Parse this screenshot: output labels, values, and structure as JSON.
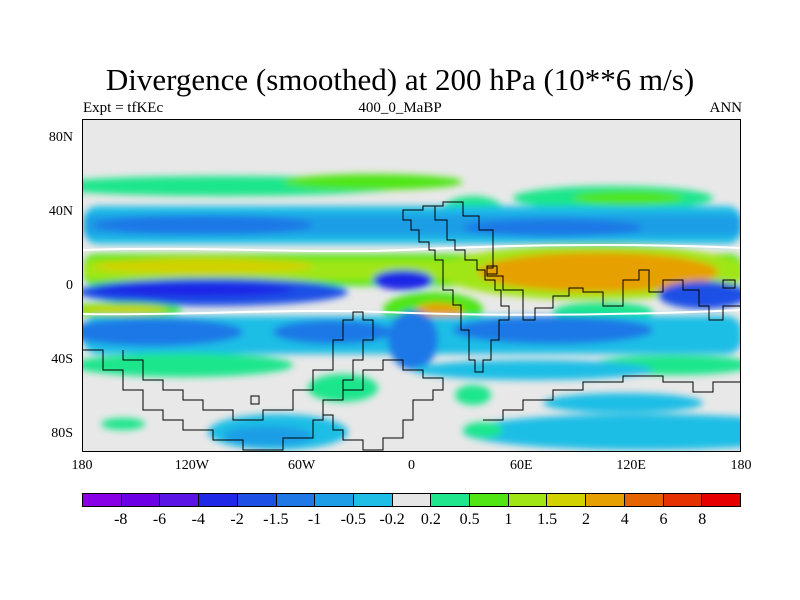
{
  "title": "Divergence (smoothed) at 200 hPa (10**6 m/s)",
  "subtitle_left": "Expt = tfKEc",
  "subtitle_center": "400_0_MaBP",
  "subtitle_right": "ANN",
  "map": {
    "projection": "cylindrical equidistant",
    "lon_range": [
      -180,
      180
    ],
    "lat_range": [
      -90,
      90
    ],
    "background_color": "#e8e8e8",
    "y_tick_labels": [
      "80N",
      "40N",
      "0",
      "40S",
      "80S"
    ],
    "x_tick_labels": [
      "180",
      "120W",
      "60W",
      "0",
      "60E",
      "120E",
      "180"
    ],
    "continent_outline": "black"
  },
  "colorbar": {
    "colors": [
      "#8a00e6",
      "#6e00e6",
      "#5a14e6",
      "#1e28e6",
      "#1e50e6",
      "#1e78e6",
      "#1e9ee6",
      "#1ebee6",
      "#e6e6e6",
      "#1ee68c",
      "#50e614",
      "#a0e614",
      "#d2d200",
      "#e6a000",
      "#e66400",
      "#e63200",
      "#e60000"
    ],
    "labels": [
      "-8",
      "-6",
      "-4",
      "-2",
      "-1.5",
      "-1",
      "-0.5",
      "-0.2",
      "0.2",
      "0.5",
      "1",
      "1.5",
      "2",
      "4",
      "6",
      "8"
    ]
  },
  "chart_data": {
    "type": "heatmap",
    "title": "Divergence (smoothed) at 200 hPa (10**6 m/s)",
    "variable": "Divergence (smoothed)",
    "level": "200 hPa",
    "units": "10**6 m/s",
    "experiment": "tfKEc",
    "period": "400_0_MaBP",
    "season": "ANN",
    "contour_levels": [
      -8,
      -6,
      -4,
      -2,
      -1.5,
      -1,
      -0.5,
      -0.2,
      0.2,
      0.5,
      1,
      1.5,
      2,
      4,
      6,
      8
    ],
    "xlim": [
      -180,
      180
    ],
    "ylim": [
      -90,
      90
    ],
    "x_ticks": [
      -180,
      -120,
      -60,
      0,
      60,
      120,
      180
    ],
    "y_ticks": [
      80,
      40,
      0,
      -40,
      -80
    ],
    "features": [
      {
        "lon": [
          -180,
          180
        ],
        "lat": [
          50,
          60
        ],
        "value": 0.5
      },
      {
        "lon": [
          -180,
          180
        ],
        "lat": [
          26,
          44
        ],
        "value": -1
      },
      {
        "lon": [
          -180,
          180
        ],
        "lat": [
          5,
          18
        ],
        "value": 1.5
      },
      {
        "lon": [
          30,
          145
        ],
        "lat": [
          -6,
          16
        ],
        "value": 2
      },
      {
        "lon": [
          -180,
          10
        ],
        "lat": [
          -8,
          4
        ],
        "value": -4
      },
      {
        "lon": [
          150,
          180
        ],
        "lat": [
          -10,
          4
        ],
        "value": -2
      },
      {
        "lon": [
          -180,
          180
        ],
        "lat": [
          -32,
          -10
        ],
        "value": -1
      },
      {
        "lon": [
          -180,
          -30
        ],
        "lat": [
          -60,
          -42
        ],
        "value": 0.5
      },
      {
        "lon": [
          -20,
          160
        ],
        "lat": [
          -48,
          -38
        ],
        "value": -0.5
      },
      {
        "lon": [
          -90,
          -40
        ],
        "lat": [
          -88,
          -70
        ],
        "value": -0.5
      },
      {
        "lon": [
          25,
          180
        ],
        "lat": [
          -88,
          -68
        ],
        "value": -0.5
      }
    ]
  }
}
